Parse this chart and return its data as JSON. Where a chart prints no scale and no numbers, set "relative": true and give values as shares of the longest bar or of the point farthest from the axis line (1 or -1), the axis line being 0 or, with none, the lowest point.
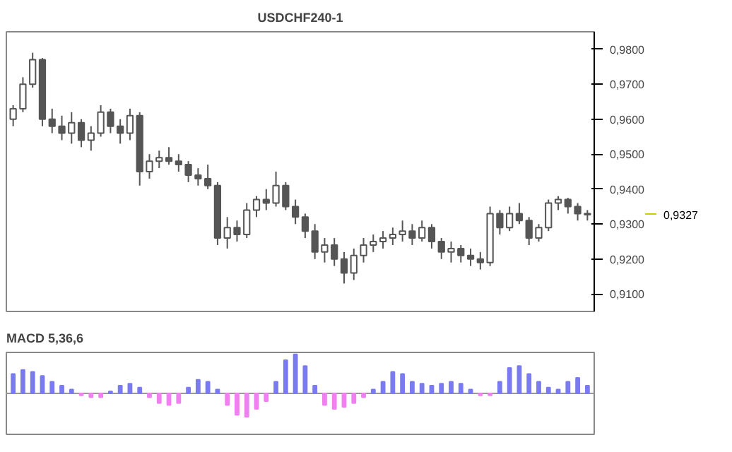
{
  "chart_data": [
    {
      "type": "candlestick",
      "title": "USDCHF240-1",
      "categories": [
        null,
        null,
        null,
        null,
        null,
        null,
        null,
        null,
        null,
        null,
        null,
        null,
        null,
        null,
        null,
        null,
        null,
        null,
        null,
        null,
        null,
        null,
        null,
        null,
        null,
        null,
        null,
        null,
        null,
        null,
        null,
        null,
        null,
        null,
        null,
        null,
        null,
        null,
        null,
        null,
        null,
        null,
        null,
        null,
        null,
        null,
        null,
        null,
        null,
        null,
        null,
        null,
        null,
        null,
        null,
        null,
        null,
        null,
        null,
        null
      ],
      "ohlc": [
        [
          0.96,
          0.964,
          0.958,
          0.963
        ],
        [
          0.963,
          0.972,
          0.962,
          0.97
        ],
        [
          0.97,
          0.979,
          0.969,
          0.977
        ],
        [
          0.977,
          0.9775,
          0.958,
          0.96
        ],
        [
          0.96,
          0.963,
          0.956,
          0.958
        ],
        [
          0.958,
          0.961,
          0.954,
          0.956
        ],
        [
          0.956,
          0.962,
          0.953,
          0.959
        ],
        [
          0.959,
          0.96,
          0.952,
          0.954
        ],
        [
          0.954,
          0.958,
          0.951,
          0.956
        ],
        [
          0.956,
          0.964,
          0.955,
          0.962
        ],
        [
          0.962,
          0.963,
          0.956,
          0.958
        ],
        [
          0.958,
          0.96,
          0.953,
          0.956
        ],
        [
          0.956,
          0.963,
          0.954,
          0.961
        ],
        [
          0.961,
          0.962,
          0.941,
          0.945
        ],
        [
          0.945,
          0.95,
          0.943,
          0.948
        ],
        [
          0.948,
          0.951,
          0.946,
          0.949
        ],
        [
          0.949,
          0.952,
          0.947,
          0.948
        ],
        [
          0.948,
          0.95,
          0.945,
          0.947
        ],
        [
          0.947,
          0.948,
          0.942,
          0.944
        ],
        [
          0.944,
          0.946,
          0.941,
          0.943
        ],
        [
          0.943,
          0.947,
          0.94,
          0.941
        ],
        [
          0.941,
          0.942,
          0.924,
          0.926
        ],
        [
          0.926,
          0.932,
          0.923,
          0.929
        ],
        [
          0.929,
          0.931,
          0.925,
          0.927
        ],
        [
          0.927,
          0.936,
          0.926,
          0.934
        ],
        [
          0.934,
          0.938,
          0.932,
          0.937
        ],
        [
          0.937,
          0.94,
          0.934,
          0.936
        ],
        [
          0.936,
          0.945,
          0.935,
          0.941
        ],
        [
          0.941,
          0.942,
          0.934,
          0.935
        ],
        [
          0.935,
          0.937,
          0.93,
          0.932
        ],
        [
          0.932,
          0.933,
          0.926,
          0.928
        ],
        [
          0.928,
          0.93,
          0.92,
          0.922
        ],
        [
          0.922,
          0.926,
          0.919,
          0.924
        ],
        [
          0.924,
          0.926,
          0.918,
          0.92
        ],
        [
          0.92,
          0.922,
          0.913,
          0.916
        ],
        [
          0.916,
          0.923,
          0.914,
          0.921
        ],
        [
          0.921,
          0.926,
          0.919,
          0.924
        ],
        [
          0.924,
          0.927,
          0.922,
          0.925
        ],
        [
          0.925,
          0.928,
          0.923,
          0.926
        ],
        [
          0.926,
          0.929,
          0.924,
          0.927
        ],
        [
          0.927,
          0.931,
          0.925,
          0.928
        ],
        [
          0.928,
          0.93,
          0.924,
          0.926
        ],
        [
          0.926,
          0.931,
          0.925,
          0.929
        ],
        [
          0.929,
          0.93,
          0.923,
          0.925
        ],
        [
          0.925,
          0.926,
          0.92,
          0.922
        ],
        [
          0.922,
          0.925,
          0.919,
          0.923
        ],
        [
          0.923,
          0.924,
          0.919,
          0.921
        ],
        [
          0.921,
          0.923,
          0.918,
          0.92
        ],
        [
          0.92,
          0.922,
          0.917,
          0.919
        ],
        [
          0.919,
          0.935,
          0.918,
          0.933
        ],
        [
          0.933,
          0.934,
          0.927,
          0.929
        ],
        [
          0.929,
          0.935,
          0.928,
          0.933
        ],
        [
          0.933,
          0.936,
          0.93,
          0.931
        ],
        [
          0.931,
          0.932,
          0.924,
          0.926
        ],
        [
          0.926,
          0.93,
          0.925,
          0.929
        ],
        [
          0.929,
          0.937,
          0.928,
          0.936
        ],
        [
          0.936,
          0.938,
          0.934,
          0.937
        ],
        [
          0.937,
          0.9375,
          0.933,
          0.935
        ],
        [
          0.935,
          0.936,
          0.931,
          0.933
        ],
        [
          0.933,
          0.934,
          0.931,
          0.9327
        ]
      ],
      "color": "#555555",
      "ylim": [
        0.905,
        0.985
      ],
      "yticks": [
        {
          "value": 0.91,
          "label": "0,9100"
        },
        {
          "value": 0.92,
          "label": "0,9200"
        },
        {
          "value": 0.93,
          "label": "0,9300"
        },
        {
          "value": 0.94,
          "label": "0,9400"
        },
        {
          "value": 0.95,
          "label": "0,9500"
        },
        {
          "value": 0.96,
          "label": "0,9600"
        },
        {
          "value": 0.97,
          "label": "0,9700"
        },
        {
          "value": 0.98,
          "label": "0,9800"
        }
      ],
      "annotations": [
        "0,9327"
      ],
      "tick_labels": "y"
    },
    {
      "type": "bar",
      "title": "MACD 5,36,6",
      "relative": true,
      "tick_labels": false,
      "categories": [
        null,
        null,
        null,
        null,
        null,
        null,
        null,
        null,
        null,
        null,
        null,
        null,
        null,
        null,
        null,
        null,
        null,
        null,
        null,
        null,
        null,
        null,
        null,
        null,
        null,
        null,
        null,
        null,
        null,
        null,
        null,
        null,
        null,
        null,
        null,
        null,
        null,
        null,
        null,
        null,
        null,
        null,
        null,
        null,
        null,
        null,
        null,
        null,
        null,
        null,
        null,
        null,
        null,
        null,
        null,
        null,
        null,
        null,
        null,
        null
      ],
      "values": [
        0.5,
        0.6,
        0.55,
        0.45,
        0.3,
        0.2,
        0.1,
        -0.05,
        -0.1,
        -0.1,
        0.05,
        0.2,
        0.25,
        0.15,
        -0.1,
        -0.25,
        -0.3,
        -0.25,
        0.15,
        0.35,
        0.3,
        0.1,
        -0.3,
        -0.55,
        -0.6,
        -0.4,
        -0.2,
        0.3,
        0.85,
        1,
        0.7,
        0.2,
        -0.3,
        -0.4,
        -0.35,
        -0.25,
        -0.1,
        0.1,
        0.3,
        0.55,
        0.5,
        0.3,
        0.25,
        0.2,
        0.25,
        0.3,
        0.25,
        0.1,
        -0.05,
        -0.05,
        0.3,
        0.65,
        0.7,
        0.5,
        0.3,
        0.15,
        0.1,
        0.3,
        0.4,
        0.2
      ],
      "colors": [
        "#7b7bf0",
        "#7b7bf0",
        "#7b7bf0",
        "#7b7bf0",
        "#7b7bf0",
        "#7b7bf0",
        "#7b7bf0",
        "#f080f0",
        "#f080f0",
        "#f080f0",
        "#7b7bf0",
        "#7b7bf0",
        "#7b7bf0",
        "#7b7bf0",
        "#f080f0",
        "#f080f0",
        "#f080f0",
        "#f080f0",
        "#7b7bf0",
        "#7b7bf0",
        "#7b7bf0",
        "#7b7bf0",
        "#f080f0",
        "#f080f0",
        "#f080f0",
        "#f080f0",
        "#f080f0",
        "#7b7bf0",
        "#7b7bf0",
        "#7b7bf0",
        "#7b7bf0",
        "#7b7bf0",
        "#f080f0",
        "#f080f0",
        "#f080f0",
        "#f080f0",
        "#f080f0",
        "#7b7bf0",
        "#7b7bf0",
        "#7b7bf0",
        "#7b7bf0",
        "#7b7bf0",
        "#7b7bf0",
        "#7b7bf0",
        "#7b7bf0",
        "#7b7bf0",
        "#7b7bf0",
        "#7b7bf0",
        "#f080f0",
        "#f080f0",
        "#7b7bf0",
        "#7b7bf0",
        "#7b7bf0",
        "#7b7bf0",
        "#7b7bf0",
        "#7b7bf0",
        "#7b7bf0",
        "#7b7bf0",
        "#7b7bf0",
        "#7b7bf0"
      ]
    }
  ]
}
